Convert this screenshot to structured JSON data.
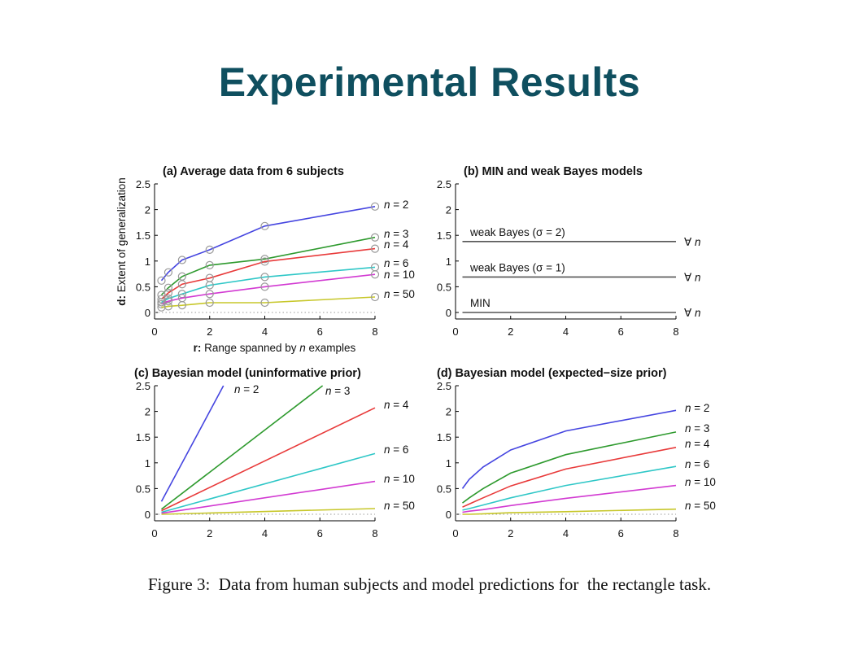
{
  "slide": {
    "title": "Experimental Results",
    "caption": "Figure 3:  Data from human subjects and model predictions for  the rectangle task."
  },
  "chart_data": [
    {
      "id": "a",
      "type": "line",
      "title": "(a) Average data from 6 subjects",
      "xlabel_prefix": "r:",
      "xlabel_main": "Range spanned by",
      "xlabel_var": "n",
      "xlabel_suffix": "examples",
      "ylabel_prefix": "d:",
      "ylabel_main": "Extent of generalization",
      "xlim": [
        0,
        8
      ],
      "ylim": [
        0,
        2.5
      ],
      "xticks": [
        0,
        2,
        4,
        6,
        8
      ],
      "yticks": [
        0,
        0.5,
        1,
        1.5,
        2,
        2.5
      ],
      "ytick_labels": [
        "0",
        "0.5",
        "1",
        "1.5",
        "2",
        "2.5"
      ],
      "markers": "circle",
      "series": [
        {
          "name": "n = 2",
          "color": "#4545e0",
          "x": [
            0.25,
            0.5,
            1,
            2,
            4,
            8
          ],
          "y": [
            0.62,
            0.78,
            1.02,
            1.22,
            1.68,
            2.06
          ]
        },
        {
          "name": "n = 3",
          "color": "#2e9a2e",
          "x": [
            0.25,
            0.5,
            1,
            2,
            4,
            8
          ],
          "y": [
            0.34,
            0.48,
            0.7,
            0.92,
            1.04,
            1.46
          ]
        },
        {
          "name": "n = 4",
          "color": "#e83a3a",
          "x": [
            0.25,
            0.5,
            1,
            2,
            4,
            8
          ],
          "y": [
            0.26,
            0.38,
            0.55,
            0.67,
            0.99,
            1.24
          ]
        },
        {
          "name": "n = 6",
          "color": "#2fc7c7",
          "x": [
            0.25,
            0.5,
            1,
            2,
            4,
            8
          ],
          "y": [
            0.2,
            0.27,
            0.36,
            0.53,
            0.69,
            0.88
          ]
        },
        {
          "name": "n = 10",
          "color": "#d23ad2",
          "x": [
            0.25,
            0.5,
            1,
            2,
            4,
            8
          ],
          "y": [
            0.16,
            0.22,
            0.28,
            0.36,
            0.5,
            0.74
          ]
        },
        {
          "name": "n = 50",
          "color": "#c7c72a",
          "x": [
            0.25,
            0.5,
            1,
            2,
            4,
            8
          ],
          "y": [
            0.1,
            0.12,
            0.14,
            0.19,
            0.19,
            0.3
          ]
        }
      ],
      "reference_line": {
        "y": 0,
        "style": "dotted"
      }
    },
    {
      "id": "b",
      "type": "line",
      "title": "(b) MIN and weak Bayes models",
      "xlim": [
        0,
        8
      ],
      "ylim": [
        0,
        2.5
      ],
      "xticks": [
        0,
        2,
        4,
        6,
        8
      ],
      "yticks": [
        0,
        0.5,
        1,
        1.5,
        2,
        2.5
      ],
      "ytick_labels": [
        "0",
        "0.5",
        "1",
        "1.5",
        "2",
        "2.5"
      ],
      "series": [
        {
          "name": "weak Bayes (σ = 2)",
          "color": "#555555",
          "x": [
            0.25,
            8
          ],
          "y": [
            1.38,
            1.38
          ],
          "end_label": "∀ n"
        },
        {
          "name": "weak Bayes (σ = 1)",
          "color": "#555555",
          "x": [
            0.25,
            8
          ],
          "y": [
            0.69,
            0.69
          ],
          "end_label": "∀ n"
        },
        {
          "name": "MIN",
          "color": "#555555",
          "x": [
            0.25,
            8
          ],
          "y": [
            0.0,
            0.0
          ],
          "end_label": "∀ n"
        }
      ]
    },
    {
      "id": "c",
      "type": "line",
      "title": "(c) Bayesian model (uninformative prior)",
      "xlim": [
        0,
        8
      ],
      "ylim": [
        0,
        2.5
      ],
      "xticks": [
        0,
        2,
        4,
        6,
        8
      ],
      "yticks": [
        0,
        0.5,
        1,
        1.5,
        2,
        2.5
      ],
      "ytick_labels": [
        "0",
        "0.5",
        "1",
        "1.5",
        "2",
        "2.5"
      ],
      "series": [
        {
          "name": "n = 2",
          "color": "#4545e0",
          "x": [
            0.25,
            2.5
          ],
          "y": [
            0.25,
            2.5
          ]
        },
        {
          "name": "n = 3",
          "color": "#2e9a2e",
          "x": [
            0.25,
            6.1
          ],
          "y": [
            0.1,
            2.5
          ]
        },
        {
          "name": "n = 4",
          "color": "#e83a3a",
          "x": [
            0.25,
            8
          ],
          "y": [
            0.07,
            2.07
          ]
        },
        {
          "name": "n = 6",
          "color": "#2fc7c7",
          "x": [
            0.25,
            8
          ],
          "y": [
            0.04,
            1.18
          ]
        },
        {
          "name": "n = 10",
          "color": "#d23ad2",
          "x": [
            0.25,
            8
          ],
          "y": [
            0.02,
            0.64
          ]
        },
        {
          "name": "n = 50",
          "color": "#c7c72a",
          "x": [
            0.25,
            8
          ],
          "y": [
            0.0,
            0.11
          ]
        }
      ],
      "reference_line": {
        "y": 0,
        "style": "dotted"
      }
    },
    {
      "id": "d",
      "type": "line",
      "title": "(d) Bayesian model (expected−size prior)",
      "xlim": [
        0,
        8
      ],
      "ylim": [
        0,
        2.5
      ],
      "xticks": [
        0,
        2,
        4,
        6,
        8
      ],
      "yticks": [
        0,
        0.5,
        1,
        1.5,
        2,
        2.5
      ],
      "ytick_labels": [
        "0",
        "0.5",
        "1",
        "1.5",
        "2",
        "2.5"
      ],
      "series": [
        {
          "name": "n = 2",
          "color": "#4545e0",
          "x": [
            0.25,
            0.5,
            1,
            2,
            4,
            8
          ],
          "y": [
            0.5,
            0.68,
            0.92,
            1.25,
            1.62,
            2.02
          ]
        },
        {
          "name": "n = 3",
          "color": "#2e9a2e",
          "x": [
            0.25,
            0.5,
            1,
            2,
            4,
            8
          ],
          "y": [
            0.22,
            0.32,
            0.5,
            0.8,
            1.16,
            1.6
          ]
        },
        {
          "name": "n = 4",
          "color": "#e83a3a",
          "x": [
            0.25,
            0.5,
            1,
            2,
            4,
            8
          ],
          "y": [
            0.14,
            0.2,
            0.32,
            0.55,
            0.88,
            1.3
          ]
        },
        {
          "name": "n = 6",
          "color": "#2fc7c7",
          "x": [
            0.25,
            0.5,
            1,
            2,
            4,
            8
          ],
          "y": [
            0.08,
            0.11,
            0.18,
            0.32,
            0.56,
            0.93
          ]
        },
        {
          "name": "n = 10",
          "color": "#d23ad2",
          "x": [
            0.25,
            0.5,
            1,
            2,
            4,
            8
          ],
          "y": [
            0.04,
            0.06,
            0.09,
            0.17,
            0.31,
            0.56
          ]
        },
        {
          "name": "n = 50",
          "color": "#c7c72a",
          "x": [
            0.25,
            0.5,
            1,
            2,
            4,
            8
          ],
          "y": [
            0.0,
            0.0,
            0.01,
            0.03,
            0.05,
            0.1
          ]
        }
      ],
      "reference_line": {
        "y": 0,
        "style": "dotted"
      }
    }
  ]
}
